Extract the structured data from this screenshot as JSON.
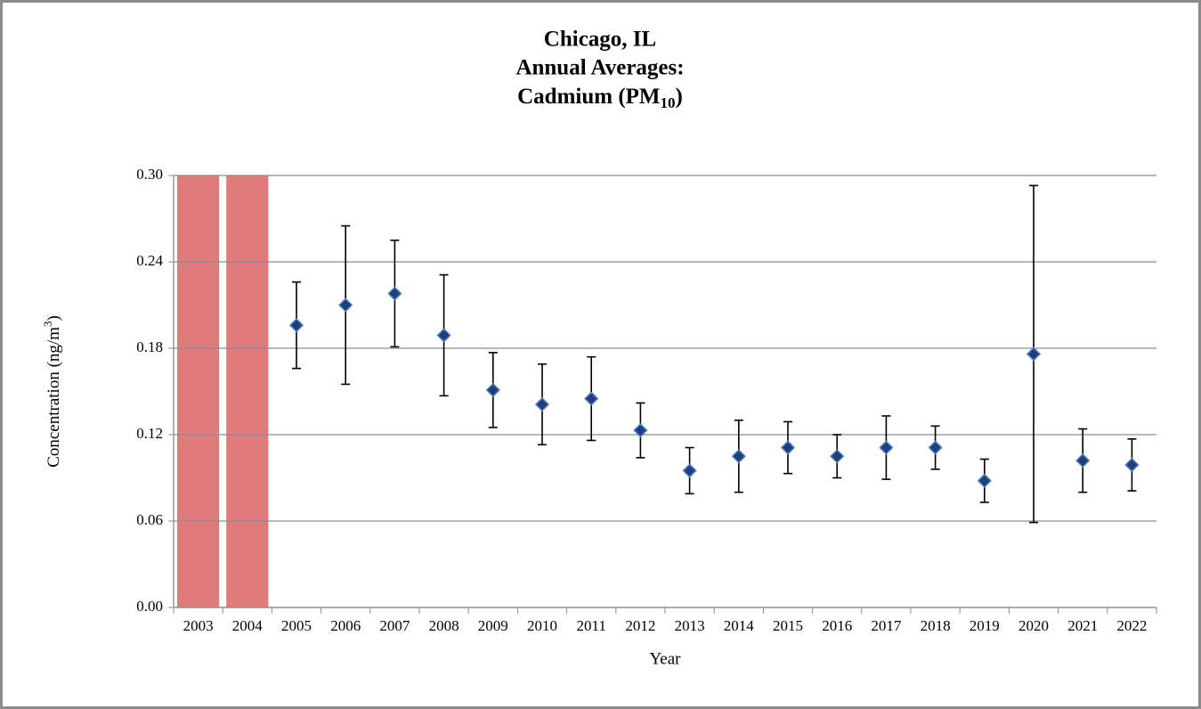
{
  "chart_data": {
    "type": "errorbar",
    "title": [
      "Chicago, IL",
      "Annual Averages:",
      [
        "Cadmium (PM",
        "10",
        ")"
      ]
    ],
    "x_label": "Year",
    "y_label": [
      "Concentration (ng/m",
      "3",
      ")"
    ],
    "categories": [
      "2003",
      "2004",
      "2005",
      "2006",
      "2007",
      "2008",
      "2009",
      "2010",
      "2011",
      "2012",
      "2013",
      "2014",
      "2015",
      "2016",
      "2017",
      "2018",
      "2019",
      "2020",
      "2021",
      "2022"
    ],
    "values": [
      null,
      null,
      0.196,
      0.21,
      0.218,
      0.189,
      0.151,
      0.141,
      0.145,
      0.123,
      0.095,
      0.105,
      0.111,
      0.105,
      0.111,
      0.111,
      0.088,
      0.176,
      0.102,
      0.099
    ],
    "errors": [
      null,
      null,
      0.03,
      0.055,
      0.037,
      0.042,
      0.026,
      0.028,
      0.029,
      0.019,
      0.016,
      0.025,
      0.018,
      0.015,
      0.022,
      0.015,
      0.015,
      0.117,
      0.022,
      0.018
    ],
    "color": "#1f3f7a",
    "highlight": [
      0,
      1
    ],
    "highlight_color": "#e07b7b",
    "ylim": [
      0,
      0.3
    ],
    "yticks": [
      {
        "value": 0,
        "label": "0.00"
      },
      {
        "value": 0.06,
        "label": "0.06"
      },
      {
        "value": 0.12,
        "label": "0.12"
      },
      {
        "value": 0.18,
        "label": "0.18"
      },
      {
        "value": 0.24,
        "label": "0.24"
      },
      {
        "value": 0.3,
        "label": "0.30"
      }
    ],
    "grid": true
  }
}
